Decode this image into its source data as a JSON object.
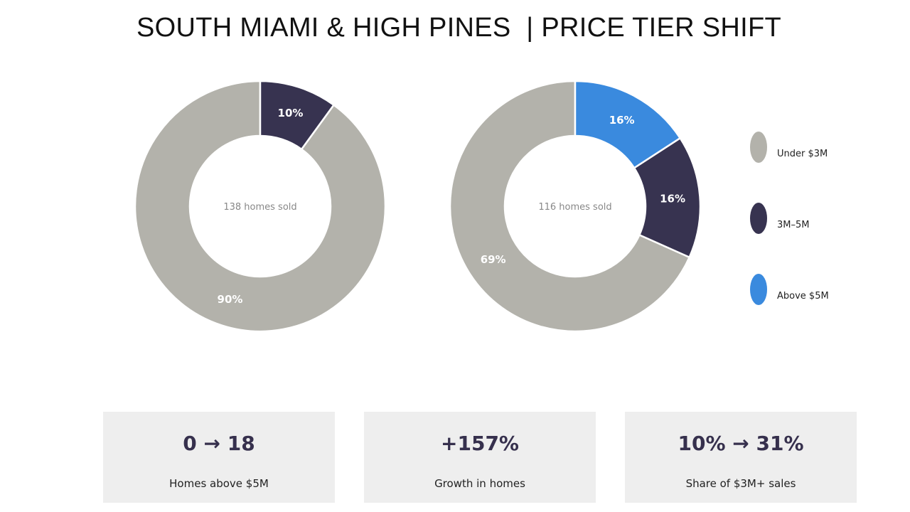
{
  "page": {
    "title": "SOUTH MIAMI & HIGH PINES  | PRICE TIER SHIFT"
  },
  "colors": {
    "under_3m": "#b3b2ab",
    "mid_3m_5m": "#373350",
    "above_5m": "#3a8ade",
    "card_bg": "#eeeeee",
    "card_value": "#36304d"
  },
  "chart_data": [
    {
      "type": "pie",
      "center_label": "138 homes sold",
      "slices": [
        {
          "category": "Under $3M",
          "value": 90,
          "label": "90%"
        },
        {
          "category": "3M–5M",
          "value": 10,
          "label": "10%"
        }
      ]
    },
    {
      "type": "pie",
      "center_label": "116 homes sold",
      "slices": [
        {
          "category": "Under $3M",
          "value": 69,
          "label": "69%"
        },
        {
          "category": "3M–5M",
          "value": 16,
          "label": "16%"
        },
        {
          "category": "Above $5M",
          "value": 16,
          "label": "16%"
        }
      ]
    }
  ],
  "legend": {
    "items": [
      {
        "label": "Under $3M",
        "color": "#b3b2ab"
      },
      {
        "label": "3M–5M",
        "color": "#373350"
      },
      {
        "label": "Above $5M",
        "color": "#3a8ade"
      }
    ]
  },
  "cards": [
    {
      "value": "0 → 18",
      "label": "Homes above $5M"
    },
    {
      "value": "+157%",
      "label": "Growth in homes"
    },
    {
      "value": "10% → 31%",
      "label": "Share of $3M+ sales"
    }
  ]
}
